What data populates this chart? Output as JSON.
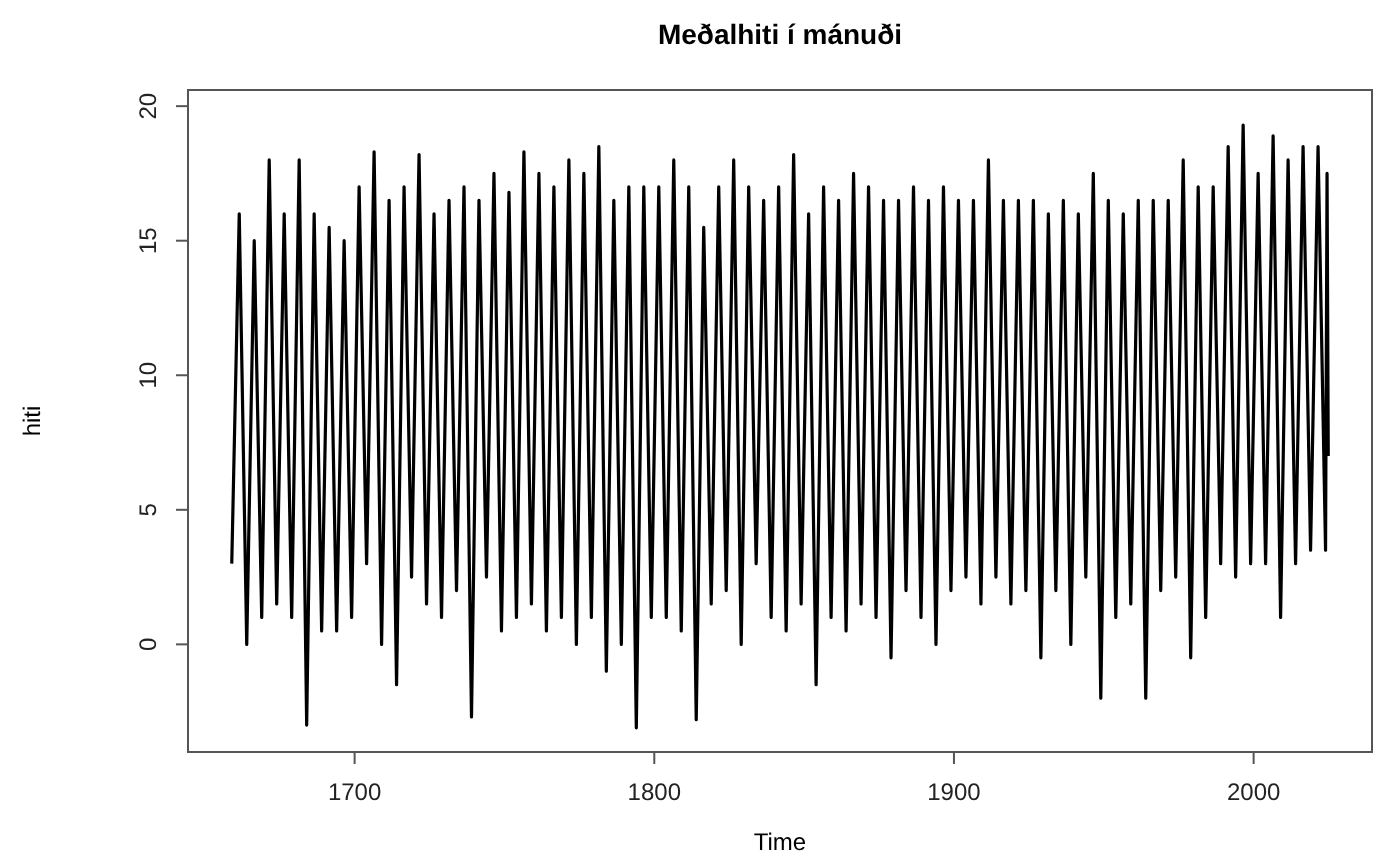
{
  "chart_data": {
    "type": "line",
    "title": "Meðalhiti í mánuði",
    "xlabel": "Time",
    "ylabel": "hiti",
    "xlim": [
      1644.4,
      2039.5
    ],
    "xticks": [
      1700,
      1800,
      1900,
      2000
    ],
    "ylim": [
      -4.0,
      20.6
    ],
    "yticks": [
      0,
      5,
      10,
      15,
      20
    ],
    "line_style": "solid",
    "marker": "none",
    "series": [
      {
        "color": "#000000",
        "x": [
          1659,
          1661.5,
          1664,
          1666.5,
          1669,
          1671.5,
          1674,
          1676.5,
          1679,
          1681.5,
          1684,
          1686.5,
          1689,
          1691.5,
          1694,
          1696.5,
          1699,
          1701.5,
          1704,
          1706.5,
          1709,
          1711.5,
          1714,
          1716.5,
          1719,
          1721.5,
          1724,
          1726.5,
          1729,
          1731.5,
          1734,
          1736.5,
          1739,
          1741.5,
          1744,
          1746.5,
          1749,
          1751.5,
          1754,
          1756.5,
          1759,
          1761.5,
          1764,
          1766.5,
          1769,
          1771.5,
          1774,
          1776.5,
          1779,
          1781.5,
          1784,
          1786.5,
          1789,
          1791.5,
          1794,
          1796.5,
          1799,
          1801.5,
          1804,
          1806.5,
          1809,
          1811.5,
          1814,
          1816.5,
          1819,
          1821.5,
          1824,
          1826.5,
          1829,
          1831.5,
          1834,
          1836.5,
          1839,
          1841.5,
          1844,
          1846.5,
          1849,
          1851.5,
          1854,
          1856.5,
          1859,
          1861.5,
          1864,
          1866.5,
          1869,
          1871.5,
          1874,
          1876.5,
          1879,
          1881.5,
          1884,
          1886.5,
          1889,
          1891.5,
          1894,
          1896.5,
          1899,
          1901.5,
          1904,
          1906.5,
          1909,
          1911.5,
          1914,
          1916.5,
          1919,
          1921.5,
          1924,
          1926.5,
          1929,
          1931.5,
          1934,
          1936.5,
          1939,
          1941.5,
          1944,
          1946.5,
          1949,
          1951.5,
          1954,
          1956.5,
          1959,
          1961.5,
          1964,
          1966.5,
          1969,
          1971.5,
          1974,
          1976.5,
          1979,
          1981.5,
          1984,
          1986.5,
          1989,
          1991.5,
          1994,
          1996.5,
          1999,
          2001.5,
          2004,
          2006.5,
          2009,
          2011.5,
          2014,
          2016.5,
          2019,
          2021.5,
          2024,
          2024.5,
          2024.9
        ],
        "values": [
          3,
          16,
          0,
          15,
          1,
          18,
          1.5,
          16,
          1,
          18,
          -3,
          16,
          0.5,
          15.5,
          0.5,
          15,
          1,
          17,
          3,
          18.3,
          0,
          16.5,
          -1.5,
          17,
          2.5,
          18.2,
          1.5,
          16,
          1,
          16.5,
          2,
          17,
          -2.7,
          16.5,
          2.5,
          17.5,
          0.5,
          16.8,
          1,
          18.3,
          1.5,
          17.5,
          0.5,
          17,
          1,
          18,
          0,
          17.5,
          1,
          18.5,
          -1,
          16.5,
          0,
          17,
          -3.1,
          17,
          1,
          17,
          1,
          18,
          0.5,
          17,
          -2.8,
          15.5,
          1.5,
          17,
          2,
          18,
          0,
          17,
          3,
          16.5,
          1,
          17,
          0.5,
          18.2,
          1.5,
          16,
          -1.5,
          17,
          1,
          16.5,
          0.5,
          17.5,
          1.5,
          17,
          1,
          16.5,
          -0.5,
          16.5,
          2,
          17,
          1,
          16.5,
          0,
          17,
          2,
          16.5,
          2.5,
          16.5,
          1.5,
          18,
          2.5,
          16.5,
          1.5,
          16.5,
          2,
          16.5,
          -0.5,
          16,
          2,
          16.5,
          0,
          16,
          2.5,
          17.5,
          -2,
          16.5,
          1,
          16,
          1.5,
          16.5,
          -2,
          16.5,
          2,
          16.5,
          2.5,
          18,
          -0.5,
          17,
          1,
          17,
          3,
          18.5,
          2.5,
          19.3,
          3,
          17.5,
          3,
          18.9,
          1,
          18,
          3,
          18.5,
          3.5,
          18.5,
          3.5,
          17.5,
          7
        ]
      }
    ]
  }
}
